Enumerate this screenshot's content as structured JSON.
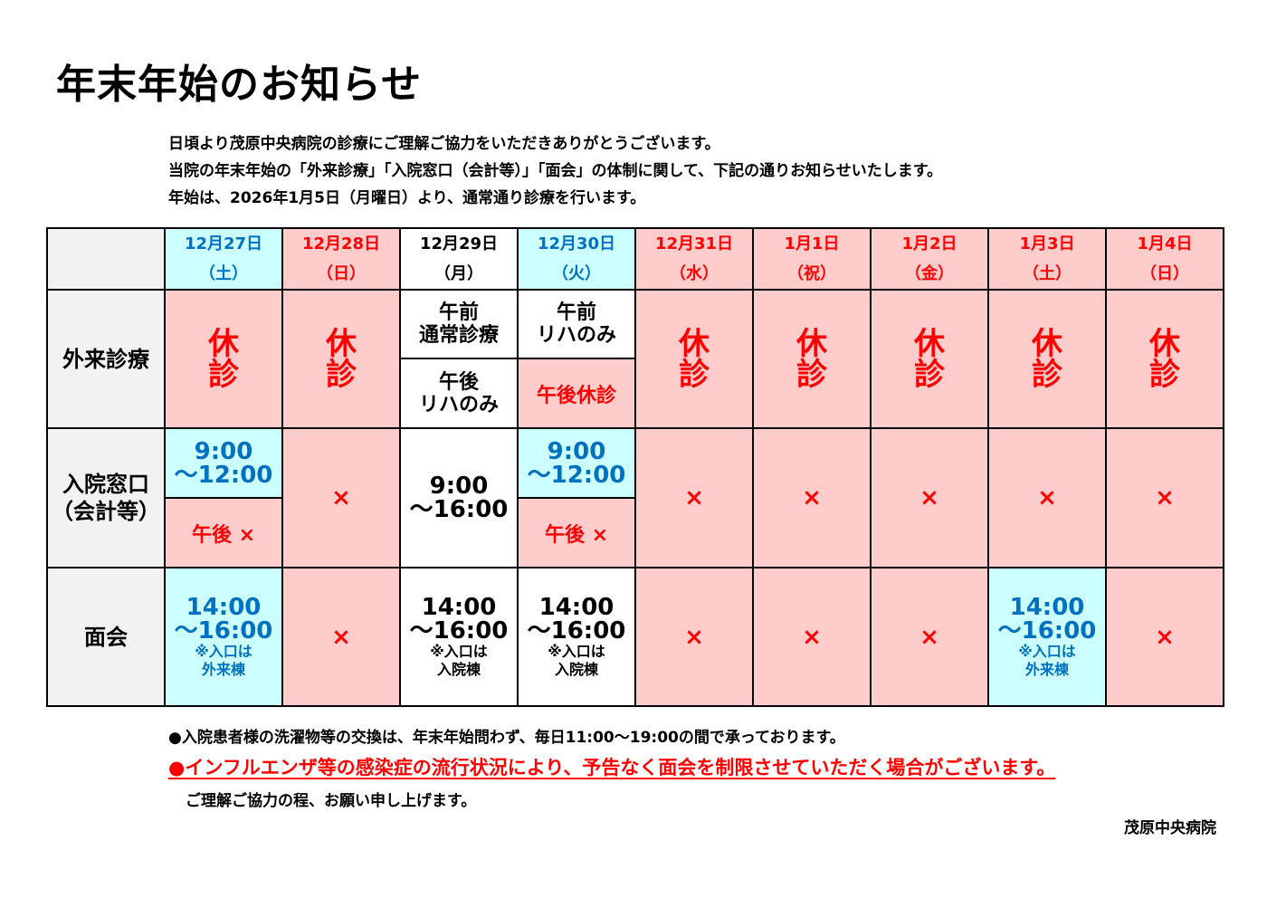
{
  "title": "年末年始のお知らせ",
  "intro": [
    "日頃より茂原中央病院の診療にご理解ご協力をいただきありがとうございます。",
    "当院の年末年始の「外来診療」「入院窓口（会計等）」「面会」の体制に関して、下記の通りお知らせいたします。",
    "年始は、2026年1月5日（月曜日）より、通常通り診療を行います。"
  ],
  "days": [
    {
      "date": "12月27日",
      "weekday": "（土）"
    },
    {
      "date": "12月28日",
      "weekday": "（日）"
    },
    {
      "date": "12月29日",
      "weekday": "（月）"
    },
    {
      "date": "12月30日",
      "weekday": "（火）"
    },
    {
      "date": "12月31日",
      "weekday": "（水）"
    },
    {
      "date": "1月1日",
      "weekday": "（祝）"
    },
    {
      "date": "1月2日",
      "weekday": "（金）"
    },
    {
      "date": "1月3日",
      "weekday": "（土）"
    },
    {
      "date": "1月4日",
      "weekday": "（日）"
    }
  ],
  "rows": {
    "outpatient": "外来診療",
    "ward_line1": "入院窓口",
    "ward_line2": "（会計等）",
    "visit": "面会"
  },
  "outpatient": {
    "closed_1": "休",
    "closed_2": "診",
    "d29_am_1": "午前",
    "d29_am_2": "通常診療",
    "d29_pm_1": "午後",
    "d29_pm_2": "リハのみ",
    "d30_am_1": "午前",
    "d30_am_2": "リハのみ",
    "d30_pm": "午後休診"
  },
  "ward": {
    "d27_1": "9:00",
    "d27_2": "～12:00",
    "d27_pm": "午後 ×",
    "d29_1": "9:00",
    "d29_2": "～16:00",
    "d30_1": "9:00",
    "d30_2": "～12:00",
    "d30_pm": "午後 ×",
    "x": "×"
  },
  "visit": {
    "t1": "14:00",
    "t2": "～16:00",
    "note_1": "※入口は",
    "note_outpatient": "外来棟",
    "note_inpatient": "入院棟",
    "x": "×"
  },
  "footer": {
    "laundry": "●入院患者様の洗濯物等の交換は、年末年始問わず、毎日11:00～19:00の間で承っております。",
    "warning": "●インフルエンザ等の感染症の流行状況により、予告なく面会を制限させていただく場合がございます。",
    "thanks": "ご理解ご協力の程、お願い申し上げます。",
    "signature": "茂原中央病院"
  },
  "colors": {
    "closed_bg": "#ffcccc",
    "open_bg": "#ccffff",
    "red_text": "#ff0000",
    "blue_text": "#0070c0"
  }
}
